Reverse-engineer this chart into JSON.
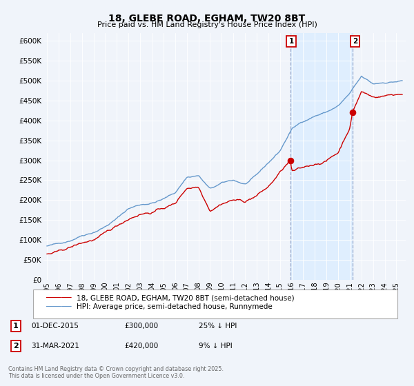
{
  "title": "18, GLEBE ROAD, EGHAM, TW20 8BT",
  "subtitle": "Price paid vs. HM Land Registry's House Price Index (HPI)",
  "hpi_label": "HPI: Average price, semi-detached house, Runnymede",
  "price_label": "18, GLEBE ROAD, EGHAM, TW20 8BT (semi-detached house)",
  "hpi_color": "#6699cc",
  "price_color": "#cc0000",
  "marker_color": "#cc0000",
  "shade_color": "#ddeeff",
  "dashed_color": "#aabbcc",
  "annotation1": {
    "label": "1",
    "date": "01-DEC-2015",
    "price": "£300,000",
    "note": "25% ↓ HPI"
  },
  "annotation2": {
    "label": "2",
    "date": "31-MAR-2021",
    "price": "£420,000",
    "note": "9% ↓ HPI"
  },
  "ylabel_ticks": [
    "£0",
    "£50K",
    "£100K",
    "£150K",
    "£200K",
    "£250K",
    "£300K",
    "£350K",
    "£400K",
    "£450K",
    "£500K",
    "£550K",
    "£600K"
  ],
  "ytick_vals": [
    0,
    50000,
    100000,
    150000,
    200000,
    250000,
    300000,
    350000,
    400000,
    450000,
    500000,
    550000,
    600000
  ],
  "ylim": [
    0,
    620000
  ],
  "xlim_start": 1994.7,
  "xlim_end": 2025.8,
  "background_color": "#f0f4fa",
  "plot_background": "#f0f4fa",
  "footer": "Contains HM Land Registry data © Crown copyright and database right 2025.\nThis data is licensed under the Open Government Licence v3.0.",
  "purchase1_x": 2015.92,
  "purchase1_y": 300000,
  "purchase2_x": 2021.25,
  "purchase2_y": 420000,
  "shade_x1": 2015.92,
  "shade_x2": 2021.25
}
